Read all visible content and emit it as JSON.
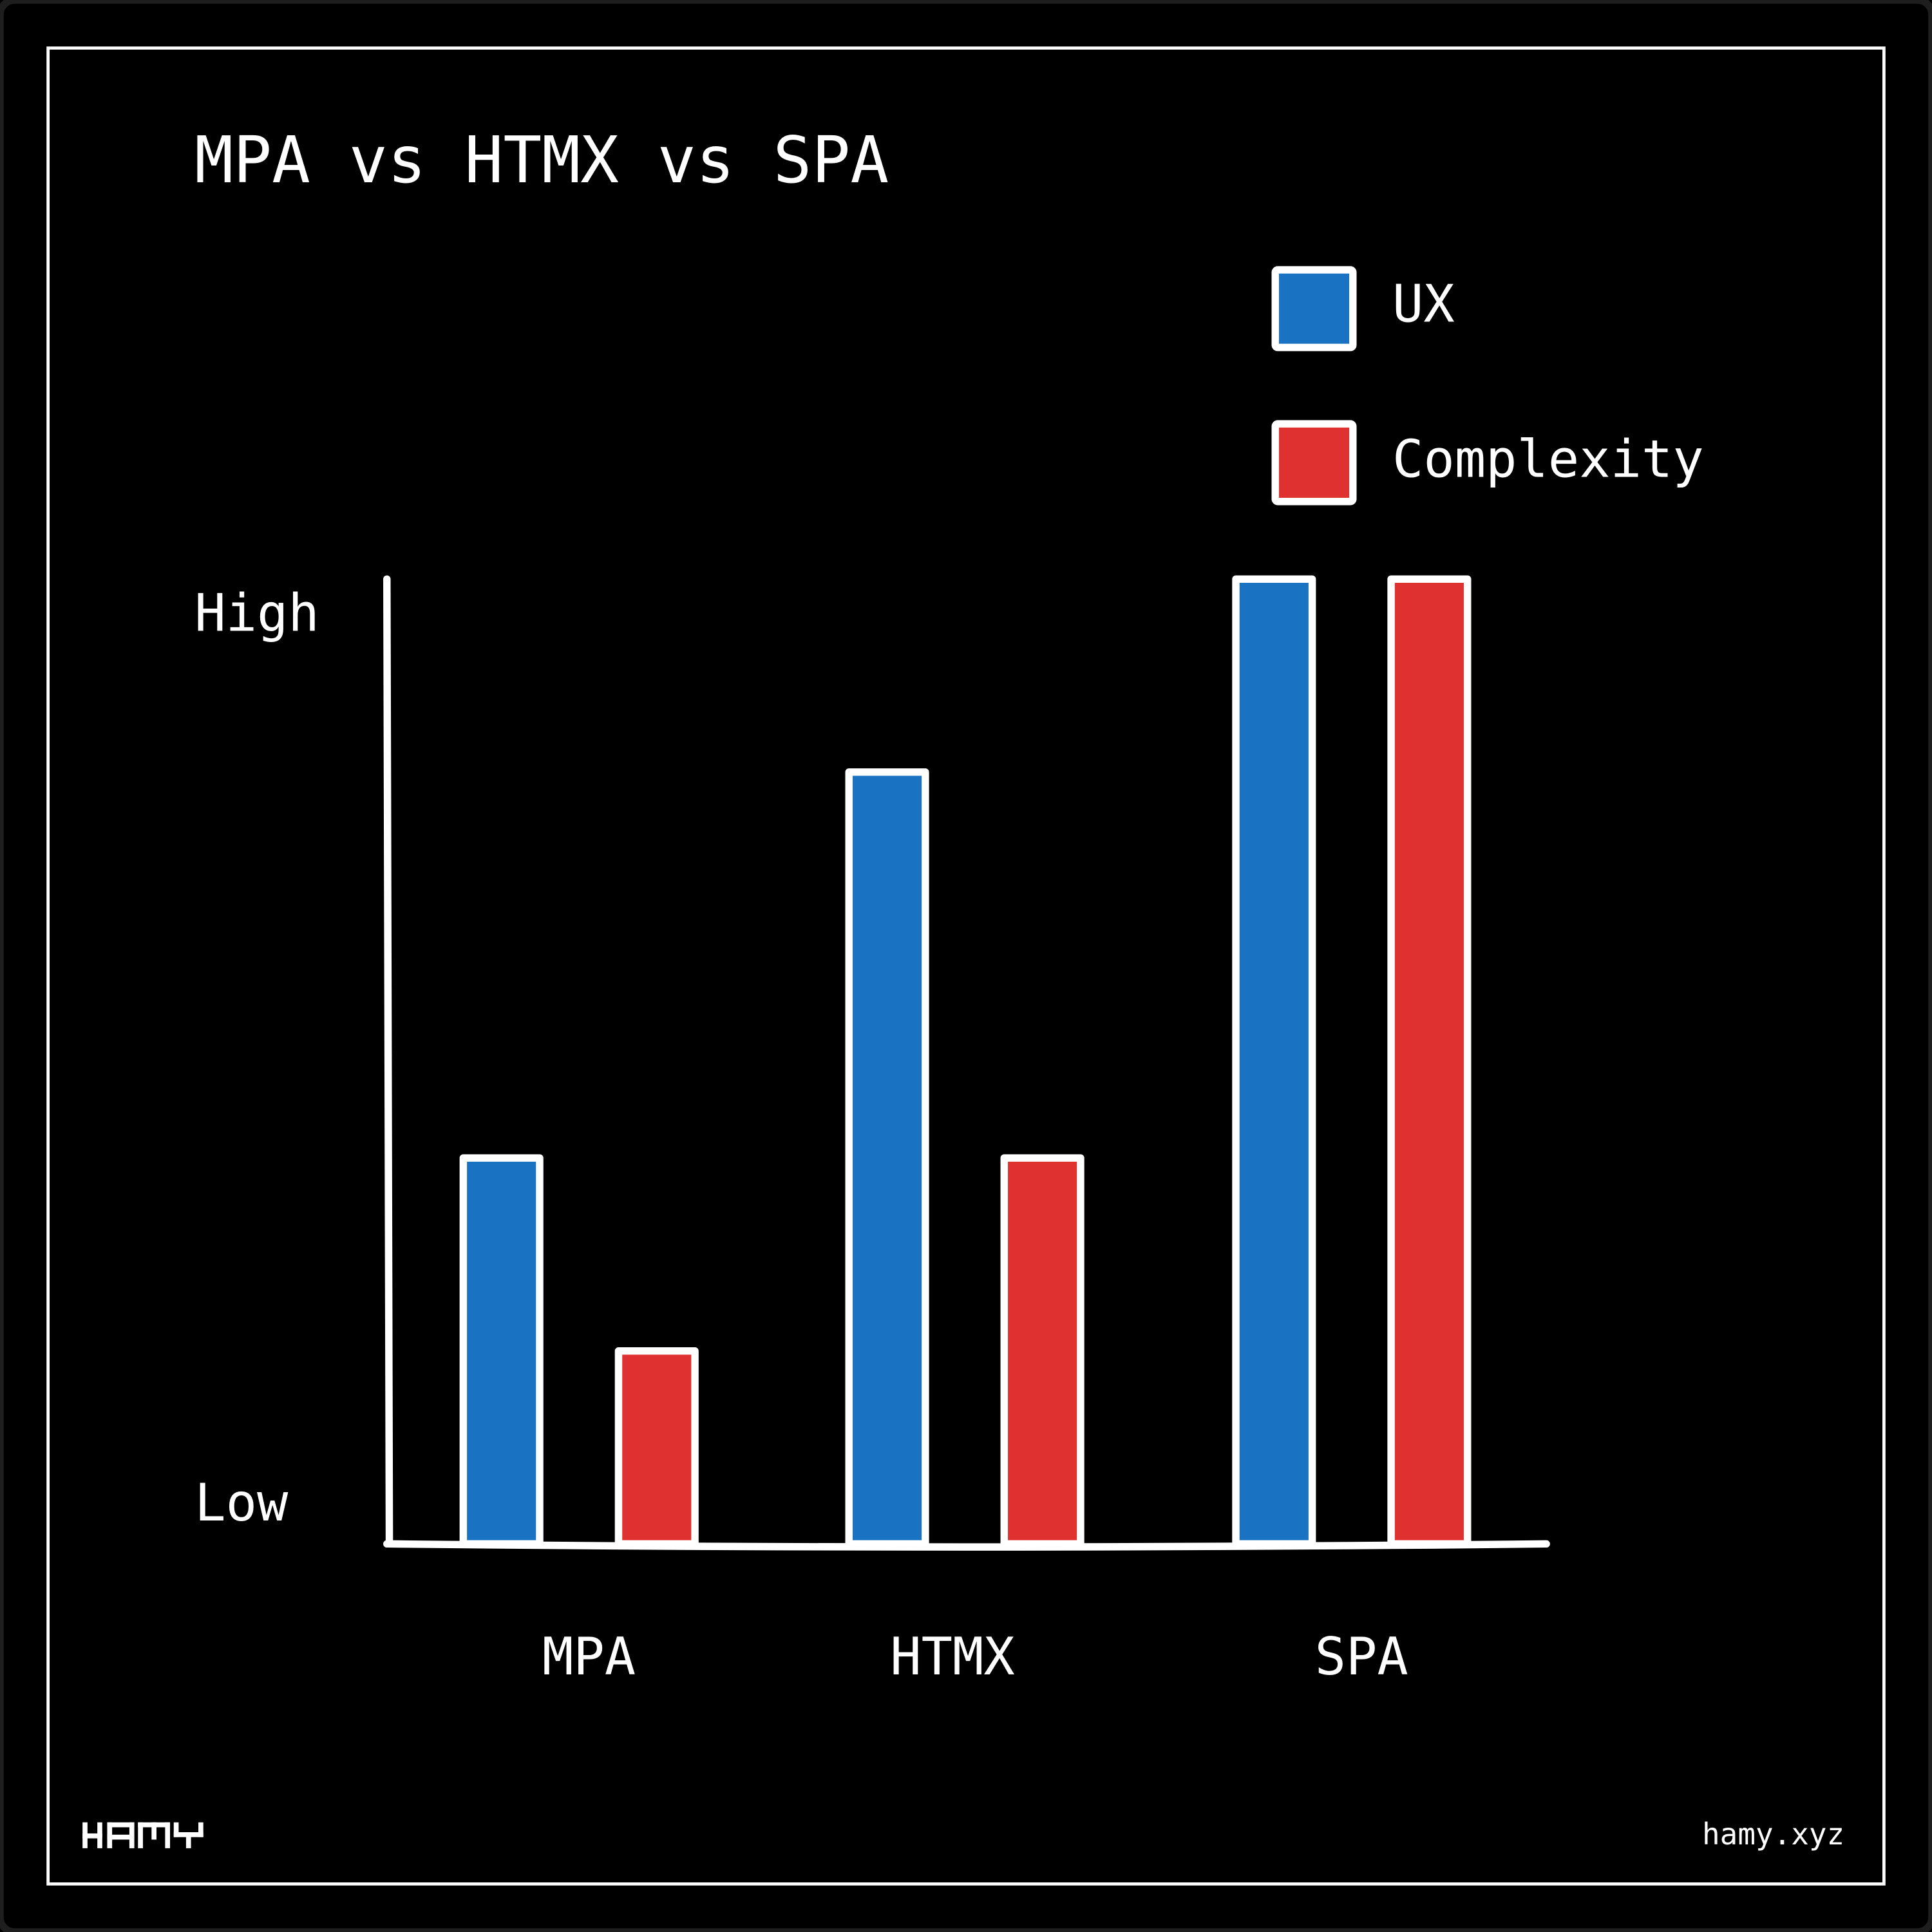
{
  "chart_data": {
    "type": "bar",
    "title": "MPA vs HTMX vs SPA",
    "categories": [
      "MPA",
      "HTMX",
      "SPA"
    ],
    "series": [
      {
        "name": "UX",
        "color": "#1a73c2",
        "values": [
          40,
          80,
          100
        ]
      },
      {
        "name": "Complexity",
        "color": "#e03131",
        "values": [
          20,
          40,
          100
        ]
      }
    ],
    "ylim": [
      0,
      100
    ],
    "y_tick_labels": {
      "low": "Low",
      "high": "High"
    },
    "legend_position": "top-right",
    "grid": false
  },
  "footer": {
    "logo_text": "HAMY",
    "site": "hamy.xyz"
  }
}
